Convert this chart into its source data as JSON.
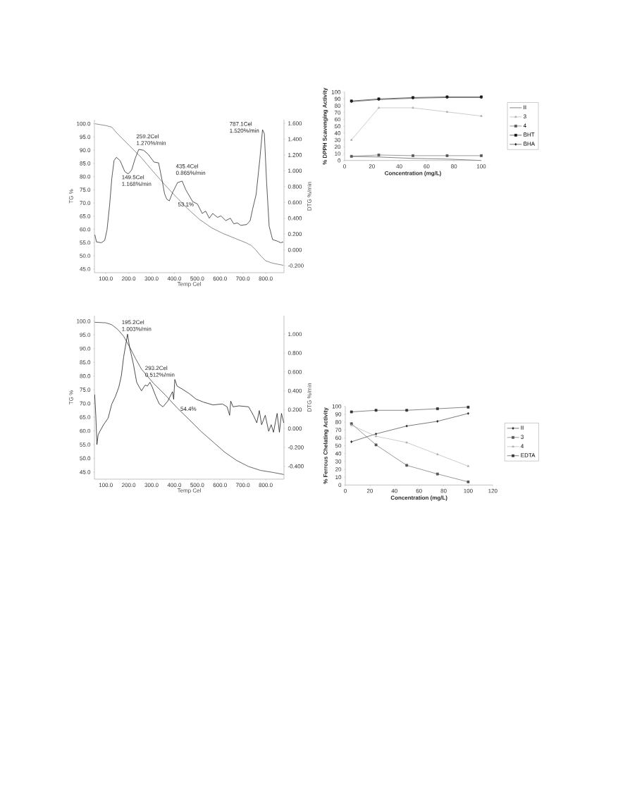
{
  "chart_data": [
    {
      "type": "line",
      "xlabel": "Temp Cel",
      "ylabel": "TG %",
      "y2label": "DTG %/min",
      "xlim": [
        50,
        880
      ],
      "ylim": [
        43.6,
        101.5
      ],
      "y2lim": [
        -0.289,
        1.645
      ],
      "xticks": [
        {
          "value": 100,
          "label": "100.0"
        },
        {
          "value": 200,
          "label": "200.0"
        },
        {
          "value": 300,
          "label": "300.0"
        },
        {
          "value": 400,
          "label": "400.0"
        },
        {
          "value": 500,
          "label": "500.0"
        },
        {
          "value": 600,
          "label": "600.0"
        },
        {
          "value": 700,
          "label": "700.0"
        },
        {
          "value": 800,
          "label": "800.0"
        }
      ],
      "yticks": [
        {
          "value": 45,
          "label": "45.0"
        },
        {
          "value": 50,
          "label": "50.0"
        },
        {
          "value": 55,
          "label": "55.0"
        },
        {
          "value": 60,
          "label": "60.0"
        },
        {
          "value": 65,
          "label": "65.0"
        },
        {
          "value": 70,
          "label": "70.0"
        },
        {
          "value": 75,
          "label": "75.0"
        },
        {
          "value": 80,
          "label": "80.0"
        },
        {
          "value": 85,
          "label": "85.0"
        },
        {
          "value": 90,
          "label": "90.0"
        },
        {
          "value": 95,
          "label": "95.0"
        },
        {
          "value": 100,
          "label": "100.0"
        }
      ],
      "y2ticks": [
        {
          "value": -0.2,
          "label": "-0.200"
        },
        {
          "value": 0,
          "label": "0.000"
        },
        {
          "value": 0.2,
          "label": "0.200"
        },
        {
          "value": 0.4,
          "label": "0.400"
        },
        {
          "value": 0.6,
          "label": "0.600"
        },
        {
          "value": 0.8,
          "label": "0.800"
        },
        {
          "value": 1.0,
          "label": "1.000"
        },
        {
          "value": 1.2,
          "label": "1.200"
        },
        {
          "value": 1.4,
          "label": "1.400"
        },
        {
          "value": 1.6,
          "label": "1.600"
        }
      ],
      "series": [
        {
          "color": "#666666",
          "x": [
            52,
            100,
            126,
            151,
            203,
            254,
            306,
            357,
            409,
            460,
            511,
            563,
            614,
            666,
            717,
            737,
            758,
            779,
            800,
            830,
            877
          ],
          "values": [
            100,
            99.3,
            98.7,
            96.2,
            91.7,
            87.3,
            82,
            77,
            72.2,
            67.7,
            63.7,
            60.6,
            58.4,
            56.6,
            54.8,
            53.9,
            52.1,
            49.9,
            48.1,
            47.2,
            46.4
          ]
        },
        {
          "color": "#222222",
          "axis": "y2",
          "x": [
            52,
            59,
            80,
            95,
            105,
            116,
            126,
            136,
            146,
            162,
            183,
            198,
            213,
            229,
            244,
            265,
            285,
            311,
            331,
            347,
            357,
            367,
            378,
            393,
            414,
            434,
            450,
            480,
            501,
            522,
            537,
            553,
            568,
            589,
            604,
            625,
            645,
            660,
            676,
            691,
            717,
            732,
            743,
            758,
            774,
            786,
            794,
            804,
            815,
            830,
            851,
            866,
            877
          ],
          "values": [
            0.19,
            0.1,
            0.09,
            0.12,
            0.25,
            0.55,
            0.9,
            1.13,
            1.17,
            1.13,
            0.99,
            0.96,
            1.01,
            1.16,
            1.27,
            1.26,
            1.21,
            1.11,
            1.1,
            0.87,
            0.71,
            0.64,
            0.62,
            0.73,
            0.85,
            0.87,
            0.76,
            0.61,
            0.58,
            0.46,
            0.49,
            0.4,
            0.46,
            0.41,
            0.43,
            0.37,
            0.4,
            0.33,
            0.34,
            0.31,
            0.32,
            0.37,
            0.52,
            0.7,
            1.14,
            1.52,
            1.47,
            0.85,
            0.3,
            0.13,
            0.11,
            0.09,
            0.1
          ]
        }
      ],
      "annotations": [
        "149.5Cel 1.168%/min",
        "259.2Cel 1.270%/min",
        "435.4Cel 0.865%/min",
        "787.1Cel 1.520%/min",
        "53.1%"
      ]
    },
    {
      "type": "line",
      "xlabel": "Concentration (mg/L)",
      "ylabel": "% DPPH Scavenging Activity",
      "legend": "right",
      "xlim": [
        0,
        100
      ],
      "ylim": [
        0,
        100
      ],
      "xticks": [
        0,
        20,
        40,
        60,
        80,
        100
      ],
      "yticks": [
        0,
        10,
        20,
        30,
        40,
        50,
        60,
        70,
        80,
        90,
        100
      ],
      "x": [
        5,
        25,
        50,
        75,
        100
      ],
      "series": [
        {
          "name": "II",
          "color": "#333333",
          "marker": "none",
          "values": [
            6,
            5,
            3,
            2,
            0
          ]
        },
        {
          "name": "3",
          "color": "#aaaaaa",
          "marker": "triangle",
          "values": [
            30,
            77,
            77,
            71,
            65
          ]
        },
        {
          "name": "4",
          "color": "#555555",
          "marker": "square",
          "values": [
            6,
            8,
            7,
            7,
            7
          ]
        },
        {
          "name": "BHT",
          "color": "#111111",
          "marker": "square",
          "values": [
            87,
            90,
            92,
            93,
            93
          ]
        },
        {
          "name": "BHA",
          "color": "#222222",
          "marker": "diamond",
          "values": [
            86,
            89,
            91,
            92,
            92
          ]
        }
      ]
    },
    {
      "type": "line",
      "xlabel": "Temp Cel",
      "ylabel": "TG %",
      "y2label": "DTG %/min",
      "xlim": [
        50,
        880
      ],
      "ylim": [
        42.4,
        102
      ],
      "y2lim": [
        -0.537,
        1.196
      ],
      "xticks": [
        {
          "value": 100,
          "label": "100.0"
        },
        {
          "value": 200,
          "label": "200.0"
        },
        {
          "value": 300,
          "label": "300.0"
        },
        {
          "value": 400,
          "label": "400.0"
        },
        {
          "value": 500,
          "label": "500.0"
        },
        {
          "value": 600,
          "label": "600.0"
        },
        {
          "value": 700,
          "label": "700.0"
        },
        {
          "value": 800,
          "label": "800.0"
        }
      ],
      "yticks": [
        {
          "value": 45,
          "label": "45.0"
        },
        {
          "value": 50,
          "label": "50.0"
        },
        {
          "value": 55,
          "label": "55.0"
        },
        {
          "value": 60,
          "label": "60.0"
        },
        {
          "value": 65,
          "label": "65.0"
        },
        {
          "value": 70,
          "label": "70.0"
        },
        {
          "value": 75,
          "label": "75.0"
        },
        {
          "value": 80,
          "label": "80.0"
        },
        {
          "value": 85,
          "label": "85.0"
        },
        {
          "value": 90,
          "label": "90.0"
        },
        {
          "value": 95,
          "label": "95.0"
        },
        {
          "value": 100,
          "label": "100.0"
        }
      ],
      "y2ticks": [
        {
          "value": -0.4,
          "label": "-0.400"
        },
        {
          "value": -0.2,
          "label": "-0.200"
        },
        {
          "value": 0,
          "label": "0.000"
        },
        {
          "value": 0.2,
          "label": "0.200"
        },
        {
          "value": 0.4,
          "label": "0.400"
        },
        {
          "value": 0.6,
          "label": "0.600"
        },
        {
          "value": 0.8,
          "label": "0.800"
        },
        {
          "value": 1.0,
          "label": "1.000"
        }
      ],
      "series": [
        {
          "color": "#333333",
          "x": [
            51,
            100,
            126,
            152,
            178,
            204,
            230,
            256,
            308,
            360,
            412,
            465,
            517,
            569,
            621,
            673,
            725,
            777,
            829,
            879
          ],
          "values": [
            99.6,
            99.4,
            98.7,
            97,
            94.5,
            90.6,
            86.4,
            82.5,
            77.4,
            73.1,
            68.4,
            64.1,
            59.8,
            56,
            52.2,
            49.2,
            47,
            45.6,
            44.9,
            44.1
          ]
        },
        {
          "color": "#111111",
          "axis": "y2",
          "x": [
            51,
            56,
            61,
            66,
            74,
            90,
            110,
            126,
            142,
            157,
            168,
            178,
            195,
            204,
            220,
            235,
            246,
            256,
            272,
            282,
            293,
            303,
            319,
            334,
            350,
            371,
            392,
            397,
            402,
            412,
            433,
            465,
            496,
            527,
            569,
            610,
            631,
            642,
            647,
            657,
            683,
            725,
            746,
            761,
            772,
            782,
            798,
            813,
            824,
            834,
            850,
            860,
            869,
            879
          ],
          "values": [
            0.36,
            0.14,
            -0.17,
            -0.07,
            -0.03,
            0.04,
            0.11,
            0.26,
            0.34,
            0.44,
            0.56,
            0.76,
            1.0,
            0.86,
            0.69,
            0.49,
            0.44,
            0.4,
            0.46,
            0.45,
            0.49,
            0.44,
            0.34,
            0.26,
            0.23,
            0.29,
            0.39,
            0.31,
            0.52,
            0.45,
            0.42,
            0.37,
            0.31,
            0.28,
            0.25,
            0.26,
            0.23,
            0.14,
            0.29,
            0.23,
            0.24,
            0.23,
            0.14,
            0.06,
            0.19,
            0.04,
            0.14,
            -0.03,
            0.04,
            -0.04,
            0.16,
            -0.04,
            0.16,
            0.06
          ]
        }
      ],
      "annotations": [
        "195.2Cel 1.003%/min",
        "293.2Cel 0.512%/min",
        "54.4%"
      ]
    },
    {
      "type": "line",
      "xlabel": "Concentration (mg/L)",
      "ylabel": "% Ferrous Chelating Activity",
      "legend": "right",
      "xlim": [
        0,
        120
      ],
      "ylim": [
        0,
        100
      ],
      "xticks": [
        0,
        20,
        40,
        60,
        80,
        100,
        120
      ],
      "yticks": [
        0,
        10,
        20,
        30,
        40,
        50,
        60,
        70,
        80,
        90,
        100
      ],
      "x": [
        5,
        25,
        50,
        75,
        100
      ],
      "series": [
        {
          "name": "II",
          "color": "#222222",
          "marker": "diamond",
          "values": [
            55,
            65,
            75,
            81,
            91
          ]
        },
        {
          "name": "3",
          "color": "#555555",
          "marker": "square",
          "values": [
            78,
            51,
            25,
            14,
            4
          ]
        },
        {
          "name": "4",
          "color": "#aaaaaa",
          "marker": "triangle",
          "values": [
            76,
            62,
            54,
            39,
            24
          ]
        },
        {
          "name": "EDTA",
          "color": "#333333",
          "marker": "square",
          "values": [
            93,
            95,
            95,
            97,
            99
          ]
        }
      ]
    }
  ]
}
